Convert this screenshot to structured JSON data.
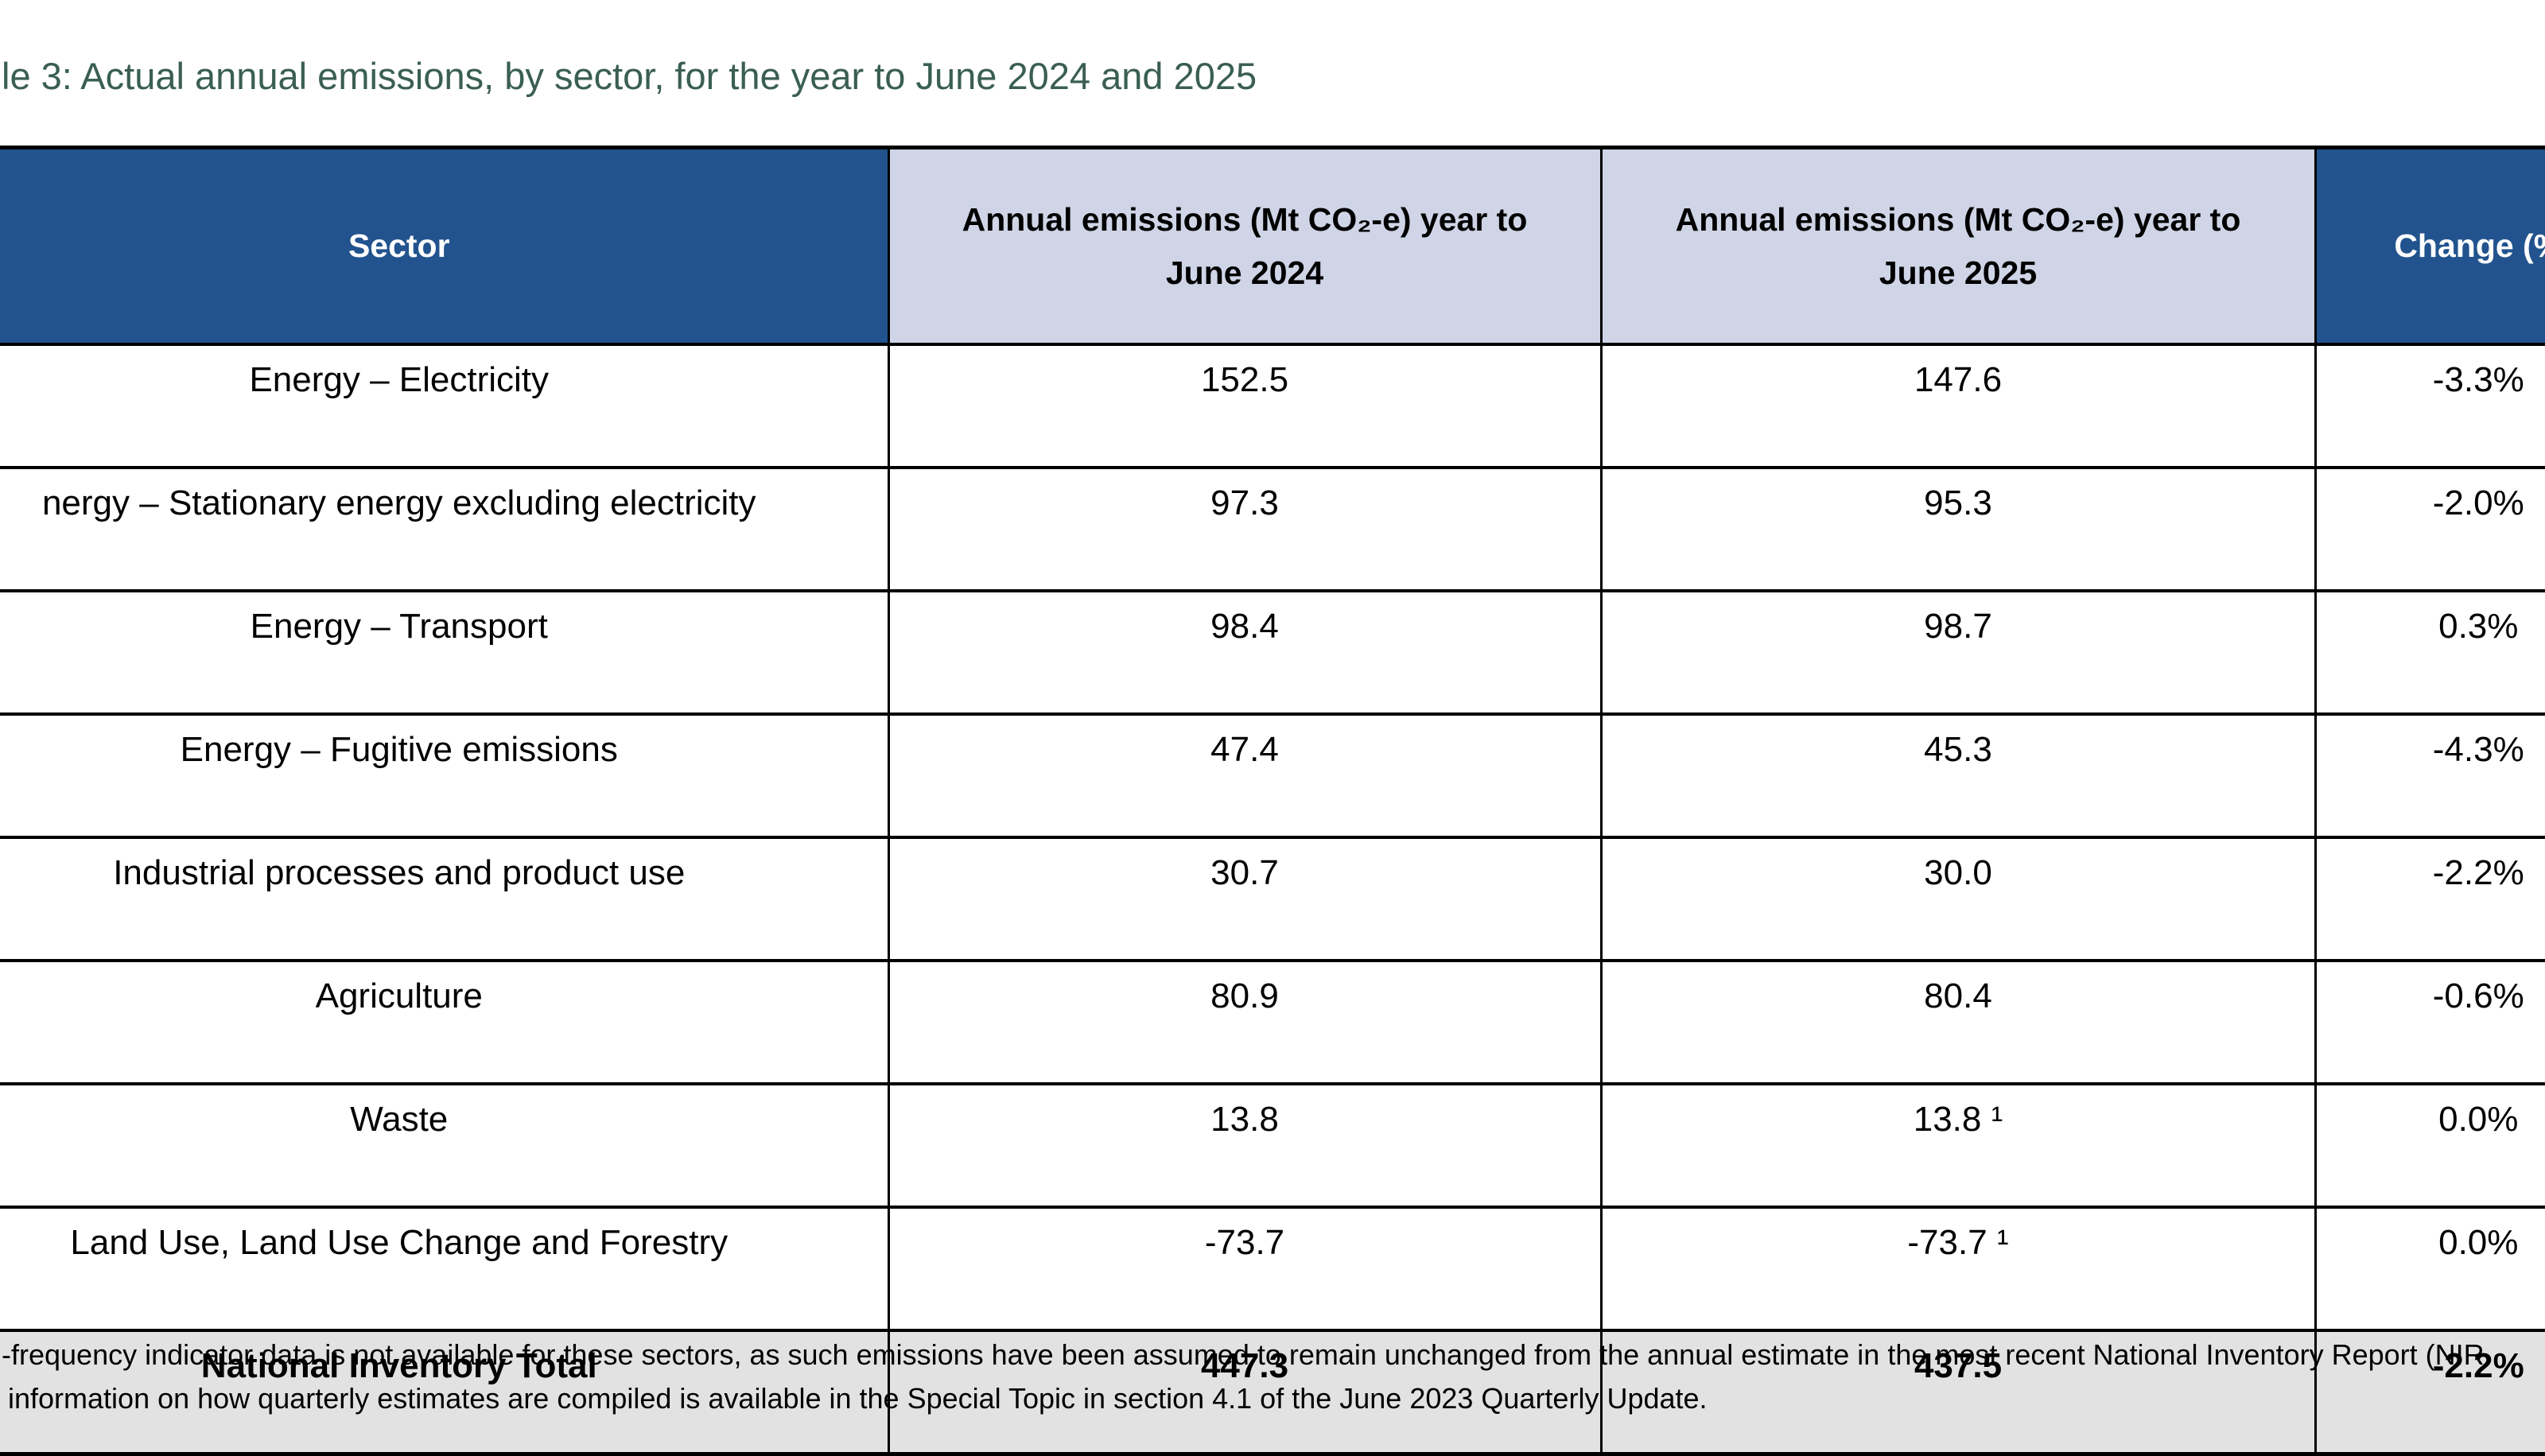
{
  "page": {
    "title": "le 3: Actual annual emissions, by sector, for the year to June 2024 and 2025"
  },
  "colors": {
    "header_blue": "#22538E",
    "header_lavender": "#CFD5E6",
    "total_gray": "#E2E2E2",
    "title_green": "#3A5F51",
    "border_black": "#000000"
  },
  "table": {
    "headers": {
      "sector": "Sector",
      "y2024_line1": "Annual emissions (Mt CO₂-e) year to",
      "y2024_line2": "June 2024",
      "y2025_line1": "Annual emissions (Mt CO₂-e) year to",
      "y2025_line2": "June 2025",
      "change": "Change (%"
    },
    "rows": [
      {
        "sector": "Energy – Electricity",
        "y2024": "152.5",
        "y2025": "147.6",
        "change": "-3.3%"
      },
      {
        "sector": "nergy – Stationary energy excluding electricity",
        "y2024": "97.3",
        "y2025": "95.3",
        "change": "-2.0%"
      },
      {
        "sector": "Energy – Transport",
        "y2024": "98.4",
        "y2025": "98.7",
        "change": "0.3%"
      },
      {
        "sector": "Energy – Fugitive emissions",
        "y2024": "47.4",
        "y2025": "45.3",
        "change": "-4.3%"
      },
      {
        "sector": "Industrial processes and product use",
        "y2024": "30.7",
        "y2025": "30.0",
        "change": "-2.2%"
      },
      {
        "sector": "Agriculture",
        "y2024": "80.9",
        "y2025": "80.4",
        "change": "-0.6%"
      },
      {
        "sector": "Waste",
        "y2024": "13.8",
        "y2025": "13.8 ¹",
        "change": "0.0%"
      },
      {
        "sector": "Land Use, Land Use Change and Forestry",
        "y2024": "-73.7",
        "y2025": "-73.7 ¹",
        "change": "0.0%"
      }
    ],
    "total": {
      "sector": "National Inventory Total",
      "y2024": "447.3",
      "y2025": "437.5",
      "change": "-2.2%"
    }
  },
  "footnotes": {
    "line1": "-frequency indicator data is not available for these sectors, as such emissions have been assumed to remain unchanged from the annual estimate in the most recent National Inventory Report (NIR",
    "line2": "information on how quarterly estimates are compiled is available in the Special Topic in section 4.1 of the June 2023 Quarterly Update."
  }
}
